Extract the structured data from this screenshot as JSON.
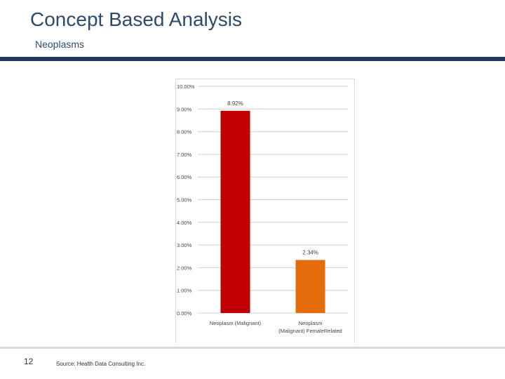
{
  "slide": {
    "title": "Concept Based Analysis",
    "subtitle": "Neoplasms",
    "page_number": "12",
    "source": "Source: Health Data Consulting Inc."
  },
  "colors": {
    "title": "#2e4a6b",
    "rule": "#1f3a5f",
    "bar1": "#c00000",
    "bar2": "#e46c0a"
  },
  "chart_data": {
    "type": "bar",
    "categories": [
      [
        "Neoplasm (Malignant)"
      ],
      [
        "Neoplasm",
        "(Malignant) FemaleRelated"
      ]
    ],
    "values": [
      8.92,
      2.34
    ],
    "data_labels": [
      "8.92%",
      "2.34%"
    ],
    "bar_colors": [
      "#c00000",
      "#e46c0a"
    ],
    "ylim": [
      0,
      10
    ],
    "yticks": [
      0,
      1,
      2,
      3,
      4,
      5,
      6,
      7,
      8,
      9,
      10
    ],
    "ytick_labels": [
      "0.00%",
      "1.00%",
      "2.00%",
      "3.00%",
      "4.00%",
      "5.00%",
      "6.00%",
      "7.00%",
      "8.00%",
      "9.00%",
      "10.00%"
    ],
    "grid": true,
    "title": "",
    "xlabel": "",
    "ylabel": ""
  }
}
